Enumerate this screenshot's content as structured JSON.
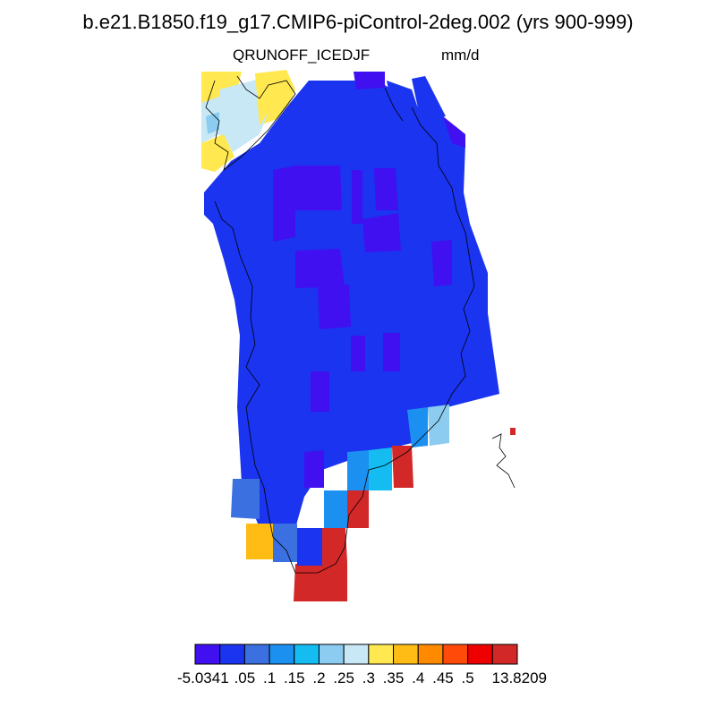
{
  "figure": {
    "title": "b.e21.B1850.f19_g17.CMIP6-piControl-2deg.002 (yrs 900-999)",
    "variable": "QRUNOFF_ICE",
    "season": "DJF",
    "units": "mm/d"
  },
  "colorbar": {
    "colors": [
      "#4010f0",
      "#1a34f0",
      "#3a70e0",
      "#1c90f0",
      "#14bcf2",
      "#8cccf0",
      "#c8e8f6",
      "#ffe850",
      "#ffbc14",
      "#ff8a00",
      "#ff4a0a",
      "#ee0000",
      "#d22828"
    ],
    "labels": [
      "-5.0341",
      ".05",
      ".1",
      ".15",
      ".2",
      ".25",
      ".3",
      ".35",
      ".4",
      ".45",
      ".5",
      "13.8209"
    ],
    "min": "-5.0341",
    "max": "13.8209"
  },
  "map_data": {
    "region": "Greenland",
    "dominant_class": 1,
    "high_runoff_classes": [
      11,
      12
    ],
    "low_runoff_classes": [
      0,
      1
    ]
  }
}
